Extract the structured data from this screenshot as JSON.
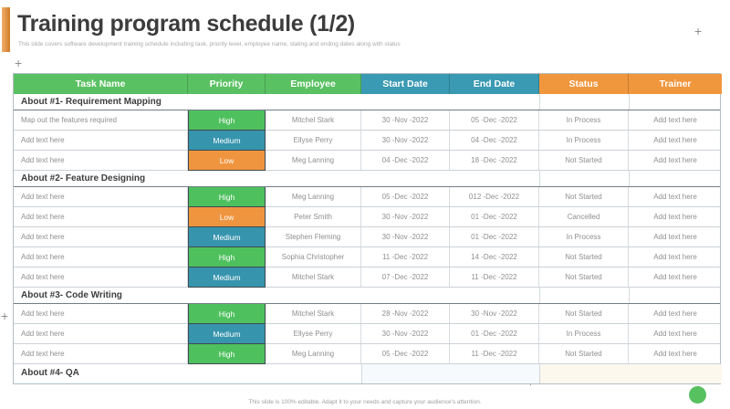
{
  "slide": {
    "title": "Training program schedule (1/2)",
    "subtitle": "This slide covers software development training schedule including task, priority level, employee name, stating and ending dates along with status",
    "footer": "This slide is 100% editable. Adapt it to your needs and capture your audience's attention."
  },
  "ui": {
    "plus_glyph": "+"
  },
  "colors": {
    "accent_bar_light": "#f1b16a",
    "accent_bar_dark": "#d07c28",
    "header": {
      "green": "#5ac162",
      "teal": "#3a9ab3",
      "orange": "#f0963d"
    },
    "priority": {
      "high": "#4ec15e",
      "medium": "#3794ad",
      "low": "#f0953f"
    },
    "qa_dates_tint": "#f6fafd",
    "qa_status_tint": "#fdf8ee",
    "green_dot": "#57c05f"
  },
  "table": {
    "columns": [
      {
        "key": "task",
        "label": "Task Name",
        "group": "green"
      },
      {
        "key": "priority",
        "label": "Priority",
        "group": "green"
      },
      {
        "key": "employee",
        "label": "Employee",
        "group": "green"
      },
      {
        "key": "start",
        "label": "Start Date",
        "group": "teal"
      },
      {
        "key": "end",
        "label": "End Date",
        "group": "teal"
      },
      {
        "key": "status",
        "label": "Status",
        "group": "orange"
      },
      {
        "key": "trainer",
        "label": "Trainer",
        "group": "orange"
      }
    ],
    "sections": [
      {
        "title": "About #1- Requirement Mapping",
        "rows": [
          {
            "task": "Map out the features required",
            "priority": "High",
            "employee": "Mitchel Stark",
            "start": "30 -Nov -2022",
            "end": "05 -Dec -2022",
            "status": "In Process",
            "trainer": "Add text here"
          },
          {
            "task": "Add text here",
            "priority": "Medium",
            "employee": "Ellyse Perry",
            "start": "30 -Nov -2022",
            "end": "04 -Dec -2022",
            "status": "In Process",
            "trainer": "Add text here"
          },
          {
            "task": "Add text here",
            "priority": "Low",
            "employee": "Meg Lanning",
            "start": "04 -Dec -2022",
            "end": "18 -Dec -2022",
            "status": "Not Started",
            "trainer": "Add text here"
          }
        ]
      },
      {
        "title": "About #2- Feature Designing",
        "rows": [
          {
            "task": "Add text here",
            "priority": "High",
            "employee": "Meg Lanning",
            "start": "05 -Dec -2022",
            "end": "012 -Dec -2022",
            "status": "Not Started",
            "trainer": "Add text here"
          },
          {
            "task": "Add text here",
            "priority": "Low",
            "employee": "Peter Smith",
            "start": "30 -Nov -2022",
            "end": "01 -Dec -2022",
            "status": "Cancelled",
            "trainer": "Add text here"
          },
          {
            "task": "Add text here",
            "priority": "Medium",
            "employee": "Stephen Fleming",
            "start": "30 -Nov -2022",
            "end": "01 -Dec -2022",
            "status": "In Process",
            "trainer": "Add text here"
          },
          {
            "task": "Add text here",
            "priority": "High",
            "employee": "Sophia Christopher",
            "start": "11 -Dec -2022",
            "end": "14 -Dec -2022",
            "status": "Not Started",
            "trainer": "Add text here"
          },
          {
            "task": "Add text here",
            "priority": "Medium",
            "employee": "Mitchel Stark",
            "start": "07 -Dec -2022",
            "end": "11 -Dec -2022",
            "status": "Not Started",
            "trainer": "Add text here"
          }
        ]
      },
      {
        "title": "About #3- Code Writing",
        "rows": [
          {
            "task": "Add text here",
            "priority": "High",
            "employee": "Mitchel Stark",
            "start": "28 -Nov -2022",
            "end": "30 -Nov -2022",
            "status": "Not Started",
            "trainer": "Add text here"
          },
          {
            "task": "Add text here",
            "priority": "Medium",
            "employee": "Ellyse Perry",
            "start": "30 -Nov -2022",
            "end": "01 -Dec -2022",
            "status": "In Process",
            "trainer": "Add text here"
          },
          {
            "task": "Add text here",
            "priority": "High",
            "employee": "Meg Lanning",
            "start": "05 -Dec -2022",
            "end": "11 -Dec -2022",
            "status": "Not Started",
            "trainer": "Add text here"
          }
        ]
      },
      {
        "title": "About #4- QA",
        "rows": []
      }
    ]
  }
}
